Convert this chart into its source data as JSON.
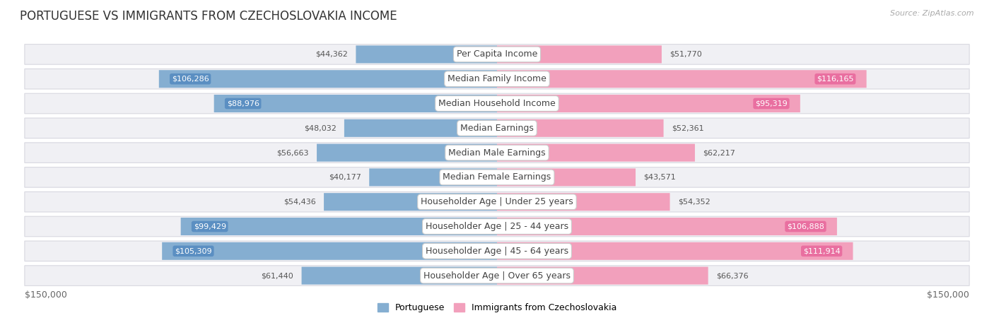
{
  "title": "PORTUGUESE VS IMMIGRANTS FROM CZECHOSLOVAKIA INCOME",
  "source": "Source: ZipAtlas.com",
  "categories": [
    "Per Capita Income",
    "Median Family Income",
    "Median Household Income",
    "Median Earnings",
    "Median Male Earnings",
    "Median Female Earnings",
    "Householder Age | Under 25 years",
    "Householder Age | 25 - 44 years",
    "Householder Age | 45 - 64 years",
    "Householder Age | Over 65 years"
  ],
  "portuguese_values": [
    44362,
    106286,
    88976,
    48032,
    56663,
    40177,
    54436,
    99429,
    105309,
    61440
  ],
  "czech_values": [
    51770,
    116165,
    95319,
    52361,
    62217,
    43571,
    54352,
    106888,
    111914,
    66376
  ],
  "portuguese_color": "#85aed1",
  "portuguese_color_dark": "#5b8fc2",
  "czech_color": "#f2a0bc",
  "czech_color_dark": "#e96fa0",
  "portuguese_label": "Portuguese",
  "czech_label": "Immigrants from Czechoslovakia",
  "row_bg_color": "#f0f0f4",
  "row_border_color": "#d8d8e0",
  "max_value": 150000,
  "xlabel_left": "$150,000",
  "xlabel_right": "$150,000",
  "title_fontsize": 12,
  "value_fontsize": 8,
  "category_fontsize": 9,
  "legend_fontsize": 9,
  "source_fontsize": 8
}
